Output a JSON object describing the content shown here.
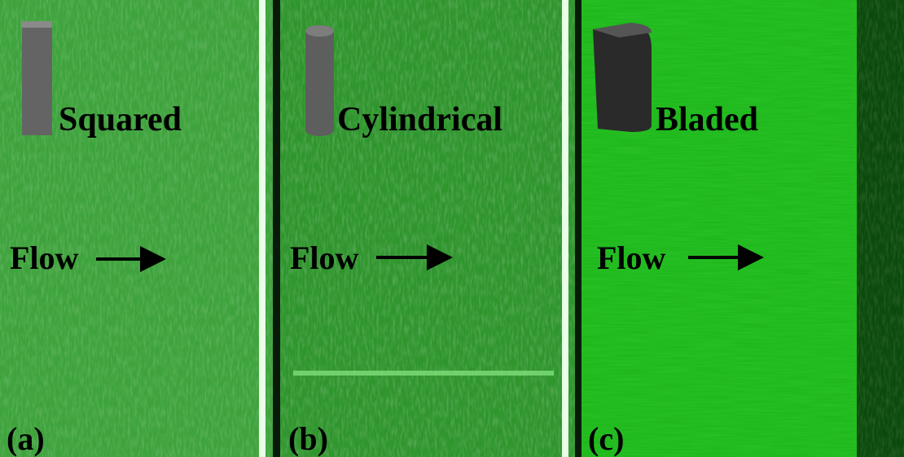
{
  "panels": [
    {
      "label": "(a)",
      "name": "Squared",
      "flow": "Flow"
    },
    {
      "label": "(b)",
      "name": "Cylindrical",
      "flow": "Flow"
    },
    {
      "label": "(c)",
      "name": "Bladed",
      "flow": "Flow"
    }
  ]
}
